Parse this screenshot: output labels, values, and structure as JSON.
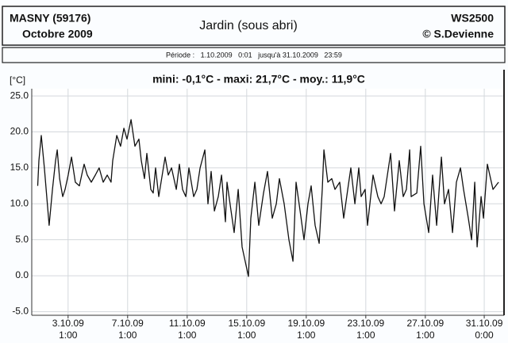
{
  "header": {
    "location": "MASNY (59176)",
    "month": "Octobre 2009",
    "title": "Jardin (sous abri)",
    "station": "WS2500",
    "author": "© S.Devienne",
    "period": "Période :   1.10.2009   0:01   jusqu'à 31.10.2009   23:59"
  },
  "chart_data": {
    "type": "line",
    "title": "mini: -0,1°C - maxi: 21,7°C - moy.: 11,9°C",
    "y_label": "[°C]",
    "color": "#111111",
    "grid": true,
    "xlim": [
      -0.4,
      31.33
    ],
    "ylim": [
      -5.5,
      26
    ],
    "yticks": [
      {
        "value": 25,
        "label": "25.0"
      },
      {
        "value": 20,
        "label": "20.0"
      },
      {
        "value": 15,
        "label": "15.0"
      },
      {
        "value": 10,
        "label": "10.0"
      },
      {
        "value": 5,
        "label": "5.0"
      },
      {
        "value": 0,
        "label": "0.0"
      },
      {
        "value": -5,
        "label": "-5.0"
      }
    ],
    "xticks": [
      {
        "value": 2.0417,
        "label": [
          "3.10.09",
          "1:00"
        ]
      },
      {
        "value": 6.0417,
        "label": [
          "7.10.09",
          "1:00"
        ]
      },
      {
        "value": 10.0417,
        "label": [
          "11.10.09",
          "1:00"
        ]
      },
      {
        "value": 14.0417,
        "label": [
          "15.10.09",
          "1:00"
        ]
      },
      {
        "value": 18.0417,
        "label": [
          "19.10.09",
          "1:00"
        ]
      },
      {
        "value": 22.0417,
        "label": [
          "23.10.09",
          "1:00"
        ]
      },
      {
        "value": 26.0417,
        "label": [
          "27.10.09",
          "1:00"
        ]
      },
      {
        "value": 30,
        "label": [
          "31.10.09",
          "0:00"
        ]
      }
    ],
    "x": [
      0,
      0.08,
      0.24,
      0.45,
      0.77,
      0.99,
      1.2,
      1.31,
      1.47,
      1.68,
      1.84,
      2.05,
      2.27,
      2.53,
      2.8,
      3.01,
      3.12,
      3.33,
      3.6,
      3.87,
      4.13,
      4.4,
      4.67,
      4.93,
      5.04,
      5.31,
      5.57,
      5.79,
      6,
      6.27,
      6.53,
      6.8,
      6.96,
      7.17,
      7.33,
      7.6,
      7.76,
      7.92,
      8.13,
      8.56,
      8.77,
      8.99,
      9.31,
      9.52,
      9.73,
      9.95,
      10.16,
      10.48,
      10.69,
      10.91,
      11.23,
      11.44,
      11.65,
      11.87,
      12.13,
      12.35,
      12.61,
      12.72,
      12.99,
      13.2,
      13.47,
      13.73,
      14.16,
      14.32,
      14.59,
      14.85,
      15.17,
      15.44,
      15.76,
      16.03,
      16.24,
      16.56,
      16.88,
      17.15,
      17.36,
      17.63,
      17.89,
      18.16,
      18.37,
      18.64,
      18.91,
      19.12,
      19.23,
      19.49,
      19.76,
      19.97,
      20.29,
      20.56,
      20.83,
      21.04,
      21.31,
      21.57,
      21.73,
      22,
      22.16,
      22.53,
      22.85,
      23.07,
      23.28,
      23.71,
      23.97,
      24.29,
      24.56,
      24.77,
      24.99,
      25.09,
      25.47,
      25.73,
      25.95,
      26.27,
      26.53,
      26.8,
      27.12,
      27.33,
      27.6,
      27.87,
      28.13,
      28.4,
      28.61,
      28.93,
      29.15,
      29.36,
      29.52,
      29.79,
      29.95,
      30.21,
      30.59,
      30.96
    ],
    "values": [
      12.5,
      16,
      19.5,
      15,
      7,
      12,
      16,
      17.5,
      13.5,
      11,
      12,
      14,
      16.5,
      13,
      12.5,
      14.5,
      15.5,
      14,
      13,
      14,
      15,
      13,
      14,
      13,
      16,
      19.5,
      18,
      20.5,
      19,
      21.7,
      18,
      19,
      16,
      13.5,
      17,
      12,
      11.5,
      15,
      11,
      16.5,
      14,
      15,
      12,
      15.5,
      12,
      11,
      15,
      11,
      12,
      15,
      17.5,
      10,
      14.5,
      9,
      11,
      14,
      7.5,
      13,
      9,
      6,
      12,
      4,
      -0.1,
      8,
      13,
      7,
      11.5,
      14.5,
      8,
      10,
      13.5,
      10,
      5,
      2,
      13,
      9,
      5,
      10,
      12.5,
      7,
      4.5,
      12,
      17.5,
      13,
      13.5,
      12,
      13,
      8,
      12,
      15,
      10,
      15,
      11,
      12,
      7,
      14,
      11,
      10,
      11,
      17,
      9,
      16,
      11,
      12,
      17.5,
      11,
      11.5,
      18,
      10,
      6,
      14,
      7,
      16.5,
      10,
      12,
      6,
      13,
      15,
      12,
      8,
      5,
      13,
      4,
      11,
      8,
      15.5,
      12,
      13
    ]
  }
}
